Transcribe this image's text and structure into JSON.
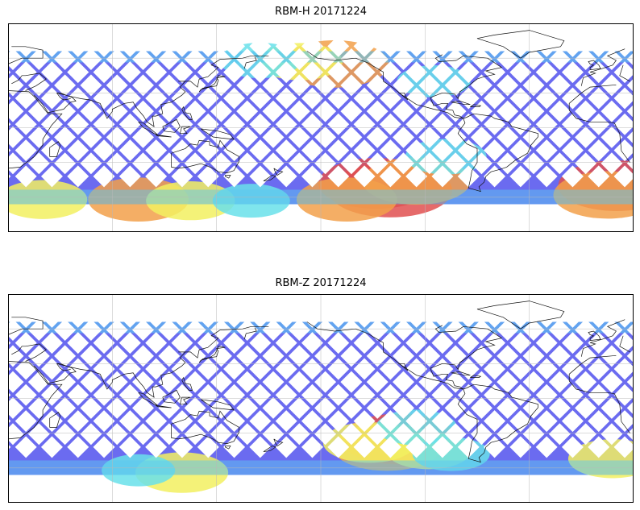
{
  "maps": [
    {
      "title": "RBM-H 20171224",
      "swath_color": "#6b6bf0",
      "hotspots": [
        {
          "lon": 240,
          "lat": -54,
          "level": 1.0
        },
        {
          "lon": 232,
          "lat": -48,
          "level": 0.9
        },
        {
          "lon": 255,
          "lat": -46,
          "level": 0.8
        },
        {
          "lon": 215,
          "lat": -62,
          "level": 0.7
        },
        {
          "lon": 10,
          "lat": -50,
          "level": 0.9
        },
        {
          "lon": 5,
          "lat": -58,
          "level": 0.8
        },
        {
          "lon": 40,
          "lat": -62,
          "level": 0.55
        },
        {
          "lon": 95,
          "lat": -62,
          "level": 0.7
        },
        {
          "lon": 125,
          "lat": -63,
          "level": 0.55
        },
        {
          "lon": 160,
          "lat": -63,
          "level": 0.4
        },
        {
          "lon": 208,
          "lat": 55,
          "level": 0.8
        },
        {
          "lon": 188,
          "lat": 57,
          "level": 0.5
        },
        {
          "lon": 165,
          "lat": 58,
          "level": 0.45
        },
        {
          "lon": 265,
          "lat": 40,
          "level": 0.35
        },
        {
          "lon": 272,
          "lat": -25,
          "level": 0.45
        }
      ]
    },
    {
      "title": "RBM-Z 20171224",
      "swath_color": "#6b6bf0",
      "hotspots": [
        {
          "lon": 245,
          "lat": -35,
          "level": 0.9
        },
        {
          "lon": 238,
          "lat": -42,
          "level": 0.8
        },
        {
          "lon": 228,
          "lat": -38,
          "level": 0.6
        },
        {
          "lon": 262,
          "lat": -45,
          "level": 0.5
        },
        {
          "lon": 255,
          "lat": -25,
          "level": 0.45
        },
        {
          "lon": 8,
          "lat": -52,
          "level": 0.55
        },
        {
          "lon": 120,
          "lat": -64,
          "level": 0.6
        },
        {
          "lon": 95,
          "lat": -62,
          "level": 0.35
        },
        {
          "lon": 275,
          "lat": -48,
          "level": 0.4
        }
      ]
    }
  ]
}
